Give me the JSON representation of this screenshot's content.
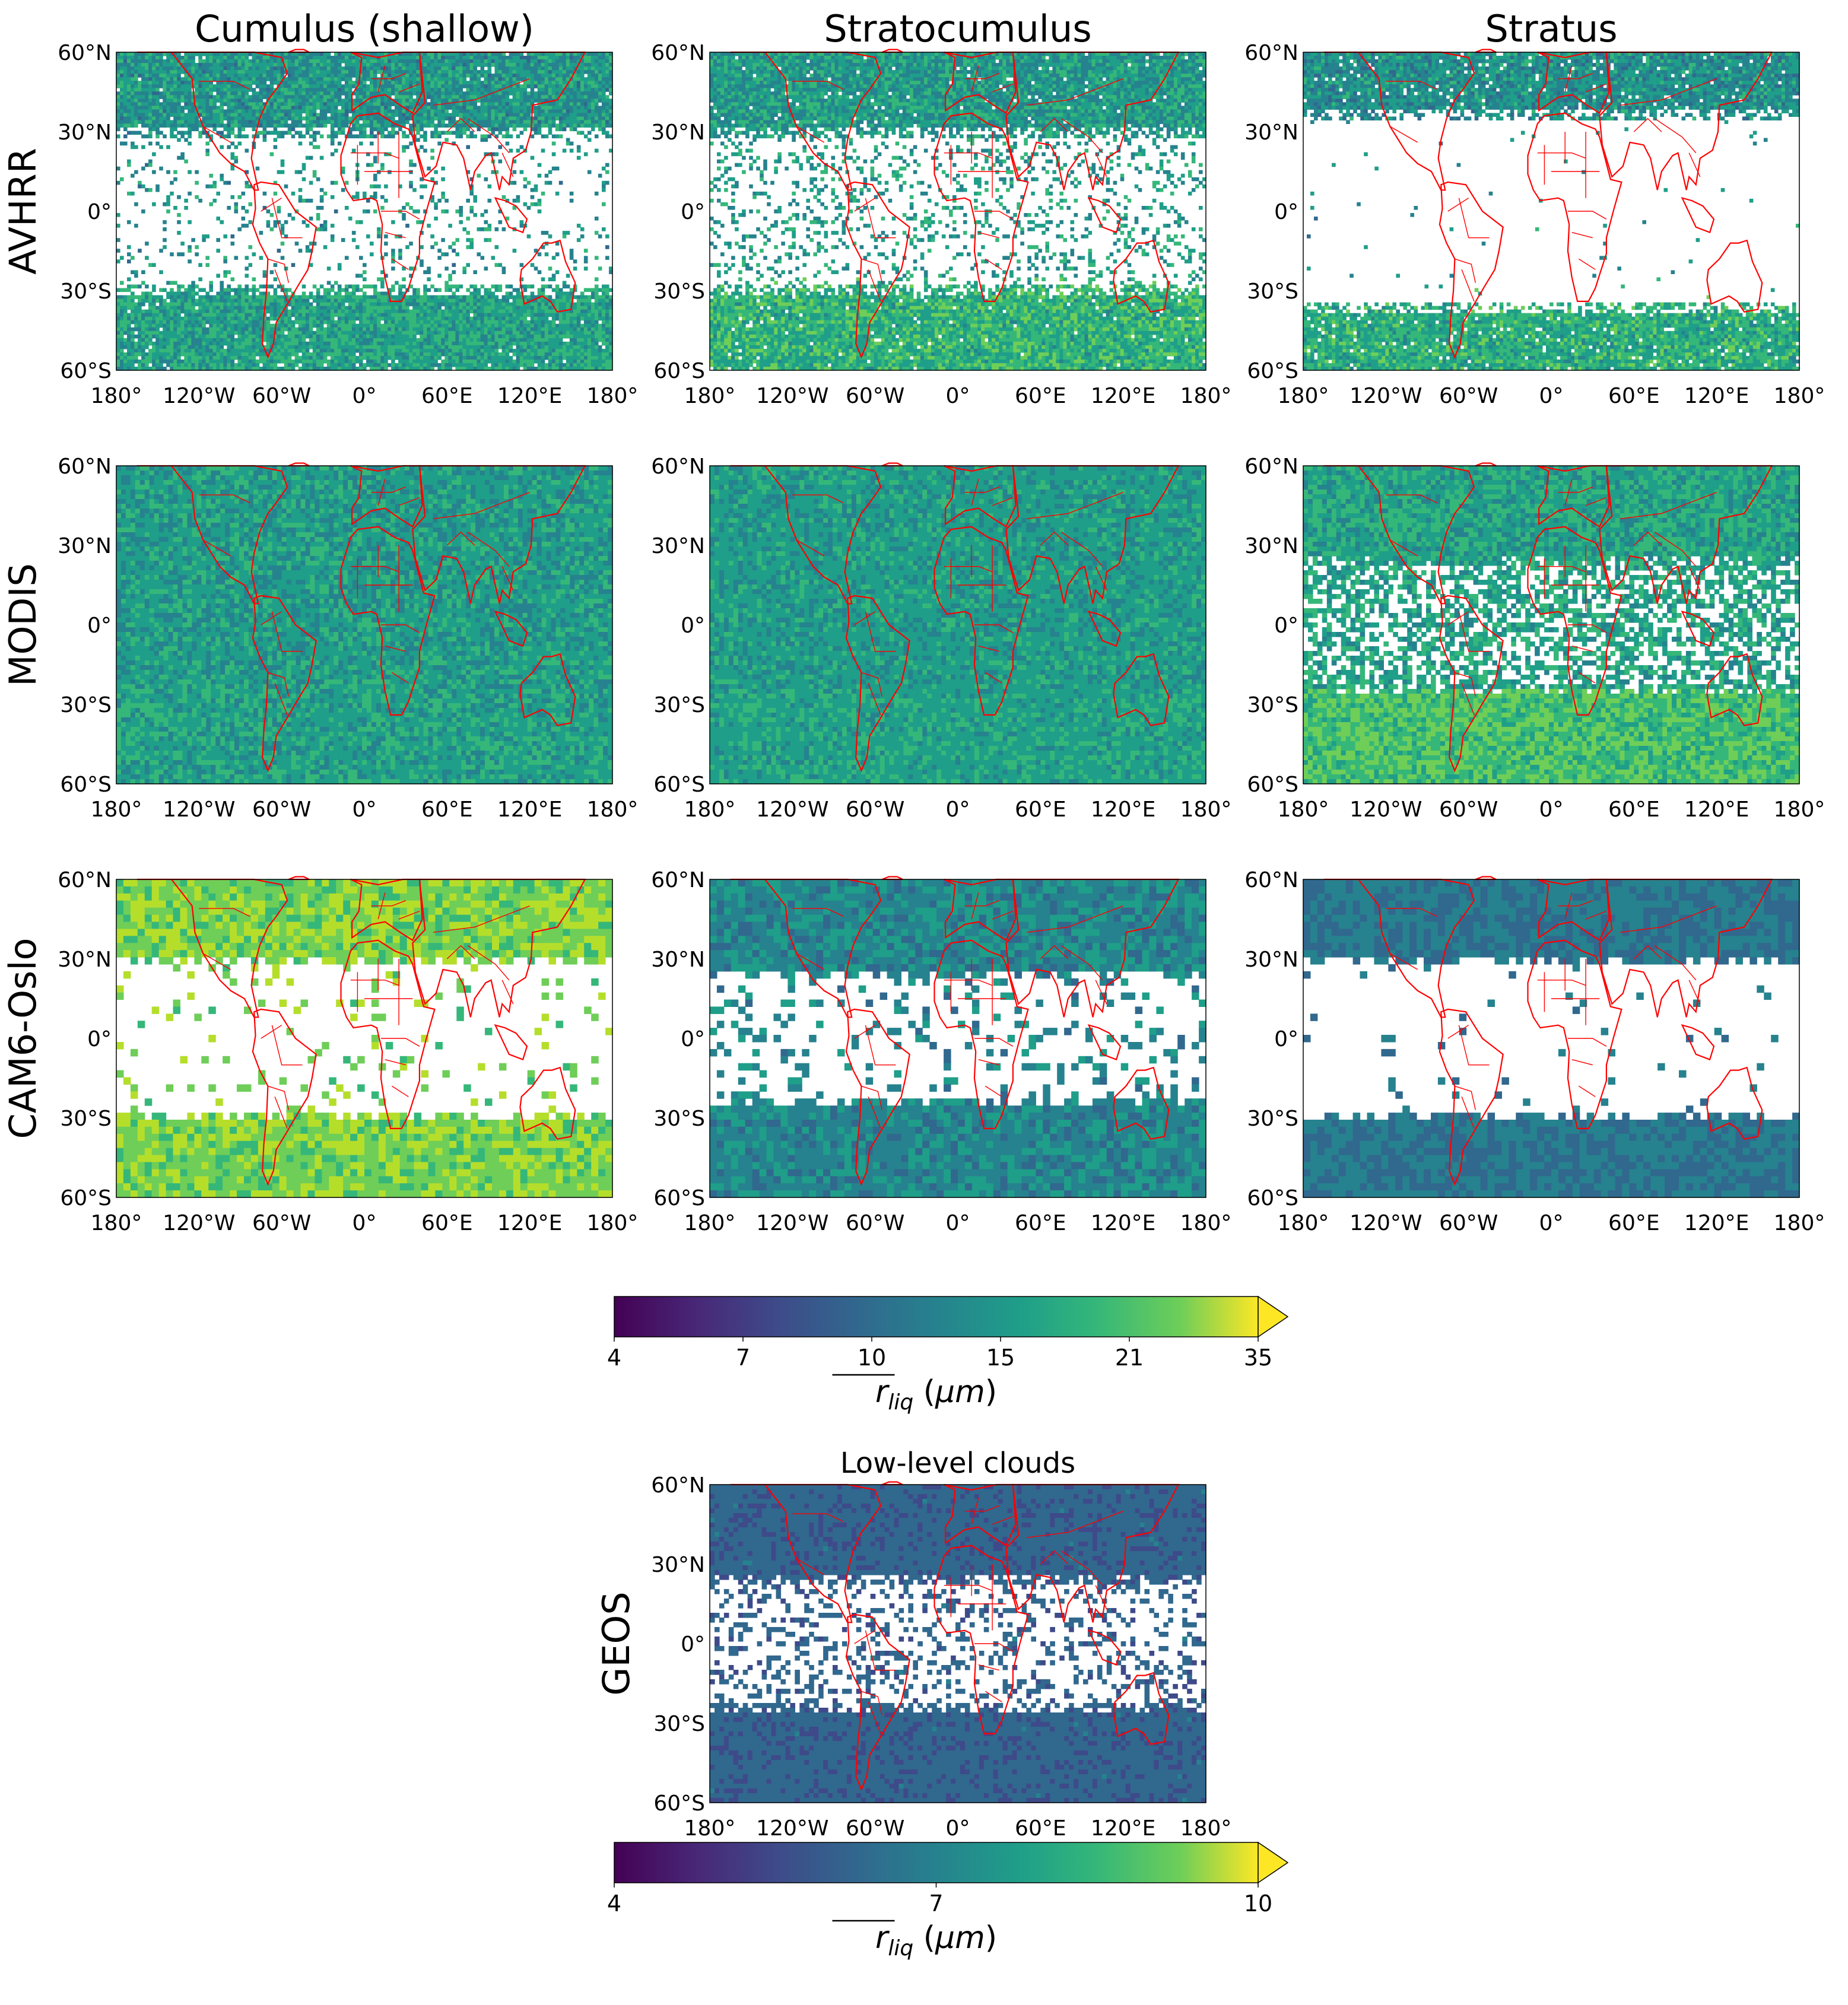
{
  "figure": {
    "column_titles": [
      "Cumulus (shallow)",
      "Stratocumulus",
      "Stratus"
    ],
    "row_labels": [
      "AVHRR",
      "MODIS",
      "CAM6-Oslo"
    ],
    "geos_row_label": "GEOS",
    "geos_panel_title": "Low-level clouds"
  },
  "chart_data": [
    {
      "type": "heatmap",
      "description_role": "3x3 grid of global maps of mean cloud droplet effective radius",
      "rows": [
        "AVHRR",
        "MODIS",
        "CAM6-Oslo"
      ],
      "columns": [
        "Cumulus (shallow)",
        "Stratocumulus",
        "Stratus"
      ],
      "x_ticks": [
        "180°",
        "120°W",
        "60°W",
        "0°",
        "60°E",
        "120°E",
        "180°"
      ],
      "y_ticks": [
        "60°N",
        "30°N",
        "0°",
        "30°S",
        "60°S"
      ],
      "xlim": [
        -180,
        180
      ],
      "ylim": [
        -60,
        60
      ],
      "colormap": "viridis",
      "coastline_color": "#ff0000",
      "missing_color": "#ffffff",
      "colorbar": {
        "ticks": [
          4,
          7,
          10,
          15,
          21,
          35
        ],
        "tick_labels": [
          "4",
          "7",
          "10",
          "15",
          "21",
          "35"
        ],
        "label": "r_liq (μm)",
        "extend": "max"
      },
      "panels": [
        {
          "row": "AVHRR",
          "column": "Cumulus (shallow)",
          "typical_value": 12,
          "coverage": "extratropics dense, tropics sparse"
        },
        {
          "row": "AVHRR",
          "column": "Stratocumulus",
          "typical_value": 13,
          "coverage": "extratropics dense, tropics sparse"
        },
        {
          "row": "AVHRR",
          "column": "Stratus",
          "typical_value": 12,
          "coverage": "mostly poleward of 30°"
        },
        {
          "row": "MODIS",
          "column": "Cumulus (shallow)",
          "typical_value": 13,
          "coverage": "near-global"
        },
        {
          "row": "MODIS",
          "column": "Stratocumulus",
          "typical_value": 13,
          "coverage": "near-global"
        },
        {
          "row": "MODIS",
          "column": "Stratus",
          "typical_value": 13,
          "coverage": "near-global, gaps in tropical oceans"
        },
        {
          "row": "CAM6-Oslo",
          "column": "Cumulus (shallow)",
          "typical_value": 20,
          "coverage": "poleward of ~28°, sparse tropics"
        },
        {
          "row": "CAM6-Oslo",
          "column": "Stratocumulus",
          "typical_value": 11,
          "coverage": "poleward of ~22°, sparse tropics"
        },
        {
          "row": "CAM6-Oslo",
          "column": "Stratus",
          "typical_value": 10,
          "coverage": "poleward of ~28°"
        }
      ]
    },
    {
      "type": "heatmap",
      "title": "Low-level clouds",
      "row": "GEOS",
      "x_ticks": [
        "180°",
        "120°W",
        "60°W",
        "0°",
        "60°E",
        "120°E",
        "180°"
      ],
      "y_ticks": [
        "60°N",
        "30°N",
        "0°",
        "30°S",
        "60°S"
      ],
      "xlim": [
        -180,
        180
      ],
      "ylim": [
        -60,
        60
      ],
      "colormap": "viridis",
      "typical_value": 6,
      "colorbar": {
        "ticks": [
          4,
          7,
          10
        ],
        "tick_labels": [
          "4",
          "7",
          "10"
        ],
        "label": "r_liq (μm)",
        "extend": "max"
      }
    }
  ]
}
